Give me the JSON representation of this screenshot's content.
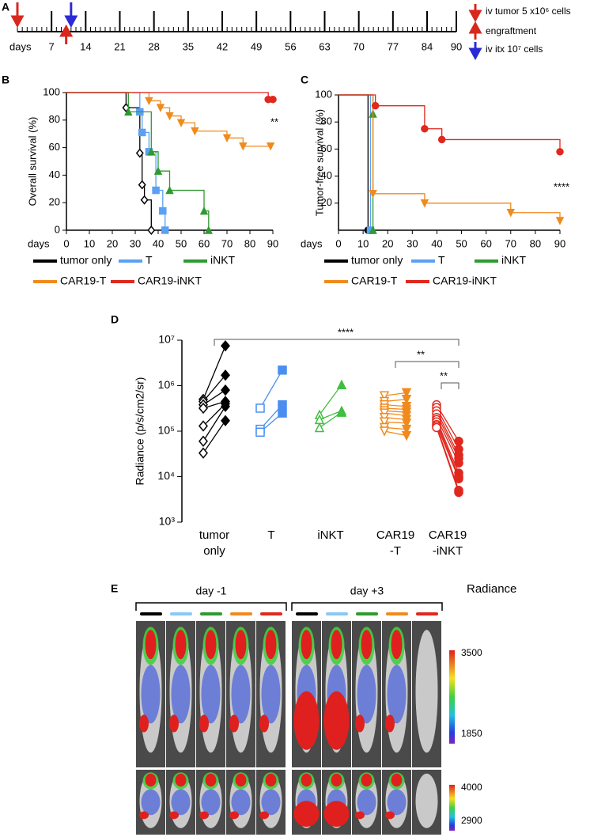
{
  "panel_labels": [
    "A",
    "B",
    "C",
    "D",
    "E"
  ],
  "chart_data": [
    {
      "type": "timeline",
      "x_label": "days",
      "xlim": [
        0,
        90
      ],
      "xticks": [
        7,
        14,
        21,
        28,
        35,
        42,
        49,
        56,
        63,
        70,
        77,
        84,
        90
      ],
      "events": [
        {
          "name": "iv tumor 5 x10⁶ cells",
          "color": "#d8281e",
          "x": 0,
          "direction": "down"
        },
        {
          "name": "engraftment",
          "color": "#d8281e",
          "x": 10,
          "direction": "up"
        },
        {
          "name": "iv itx 10⁷ cells",
          "color": "#2b2bd6",
          "x": 11,
          "direction": "down"
        }
      ]
    },
    {
      "type": "step",
      "x_label": "days",
      "y_label": "Overall survival (%)",
      "annotation": "**",
      "xlim": [
        0,
        90
      ],
      "ylim": [
        0,
        100
      ],
      "xticks": [
        0,
        10,
        20,
        30,
        40,
        50,
        60,
        70,
        80,
        90
      ],
      "yticks": [
        0,
        20,
        40,
        60,
        80,
        100
      ],
      "series": [
        {
          "name": "tumor only",
          "color": "#000000",
          "marker": "diamond-open",
          "x": [
            0,
            26,
            32,
            33,
            34,
            37
          ],
          "values": [
            100,
            89,
            56,
            33,
            22,
            0
          ]
        },
        {
          "name": "T",
          "color": "#5aa0f5",
          "marker": "square",
          "x": [
            0,
            32,
            33,
            36,
            39,
            42,
            43
          ],
          "values": [
            100,
            86,
            71,
            57,
            29,
            14,
            0
          ]
        },
        {
          "name": "iNKT",
          "color": "#2f9a2f",
          "marker": "triangle",
          "x": [
            0,
            27,
            37,
            40,
            45,
            60,
            62
          ],
          "values": [
            100,
            86,
            57,
            43,
            29,
            14,
            0
          ]
        },
        {
          "name": "CAR19-T",
          "color": "#f08a1c",
          "marker": "triangle-down",
          "x": [
            0,
            36,
            41,
            45,
            50,
            56,
            70,
            77,
            89
          ],
          "values": [
            100,
            94,
            89,
            83,
            78,
            72,
            67,
            61,
            61
          ]
        },
        {
          "name": "CAR19-iNKT",
          "color": "#e0281e",
          "marker": "circle",
          "x": [
            0,
            88,
            90
          ],
          "values": [
            100,
            95,
            95
          ]
        }
      ]
    },
    {
      "type": "step",
      "x_label": "days",
      "y_label": "Tumor-free survival (%)",
      "annotation": "****",
      "xlim": [
        0,
        90
      ],
      "ylim": [
        0,
        100
      ],
      "xticks": [
        0,
        10,
        20,
        30,
        40,
        50,
        60,
        70,
        80,
        90
      ],
      "yticks": [
        20,
        40,
        60,
        80,
        100
      ],
      "series": [
        {
          "name": "tumor only",
          "color": "#000000",
          "marker": "circle",
          "x": [
            0,
            12,
            13
          ],
          "values": [
            100,
            0,
            0
          ]
        },
        {
          "name": "T",
          "color": "#5aa0f5",
          "marker": "square",
          "x": [
            0,
            13
          ],
          "values": [
            100,
            0
          ]
        },
        {
          "name": "iNKT",
          "color": "#2f9a2f",
          "marker": "triangle",
          "x": [
            0,
            14,
            14
          ],
          "values": [
            100,
            86,
            0
          ]
        },
        {
          "name": "CAR19-T",
          "color": "#f08a1c",
          "marker": "triangle-down",
          "x": [
            0,
            14,
            35,
            70,
            90
          ],
          "values": [
            100,
            27,
            20,
            13,
            7
          ]
        },
        {
          "name": "CAR19-iNKT",
          "color": "#e0281e",
          "marker": "circle",
          "x": [
            0,
            15,
            35,
            42,
            90
          ],
          "values": [
            100,
            92,
            75,
            67,
            58
          ]
        }
      ]
    },
    {
      "type": "paired-scatter",
      "y_label": "Radiance (p/s/cm2/sr)",
      "log_scale": true,
      "ylim": [
        1000,
        10000000
      ],
      "yticks": [
        {
          "value": 1000,
          "label": "10³"
        },
        {
          "value": 10000,
          "label": "10⁴"
        },
        {
          "value": 100000,
          "label": "10⁵"
        },
        {
          "value": 1000000,
          "label": "10⁶"
        },
        {
          "value": 10000000,
          "label": "10⁷"
        }
      ],
      "categories": [
        [
          "tumor",
          "only"
        ],
        [
          "T"
        ],
        [
          "iNKT"
        ],
        [
          "CAR19",
          "-T"
        ],
        [
          "CAR19",
          "-iNKT"
        ]
      ],
      "annotations": [
        "****",
        "**",
        "**"
      ],
      "groups": [
        {
          "color": "#000000",
          "marker": "diamond",
          "before": [
            500000,
            450000,
            380000,
            320000,
            130000,
            60000,
            33000
          ],
          "after": [
            7500000,
            1700000,
            800000,
            450000,
            400000,
            350000,
            170000
          ]
        },
        {
          "color": "#4a8ff0",
          "marker": "square",
          "before": [
            320000,
            110000,
            95000
          ],
          "after": [
            2200000,
            380000,
            250000
          ]
        },
        {
          "color": "#3fbf3f",
          "marker": "triangle",
          "before": [
            230000,
            180000,
            120000
          ],
          "after": [
            1050000,
            280000,
            260000
          ]
        },
        {
          "color": "#f08a1c",
          "marker": "triangle-down",
          "before": [
            600000,
            450000,
            380000,
            320000,
            280000,
            250000,
            200000,
            160000,
            120000,
            100000
          ],
          "after": [
            700000,
            500000,
            350000,
            300000,
            260000,
            220000,
            180000,
            150000,
            110000,
            80000
          ]
        },
        {
          "color": "#e0281e",
          "marker": "circle",
          "before": [
            380000,
            330000,
            280000,
            240000,
            200000,
            180000,
            160000,
            140000,
            130000,
            120000
          ],
          "after": [
            60000,
            40000,
            30000,
            25000,
            20000,
            12000,
            10000,
            9000,
            5000,
            4500
          ]
        }
      ]
    }
  ],
  "imaging": {
    "groups": [
      "day -1",
      "day +3"
    ],
    "colors": [
      "#000000",
      "#8ac8f5",
      "#2f9a2f",
      "#f08a1c",
      "#e0281e"
    ],
    "colorbar_title": "Radiance",
    "colorbars": [
      [
        3500,
        1850
      ],
      [
        4000,
        2900
      ]
    ]
  }
}
